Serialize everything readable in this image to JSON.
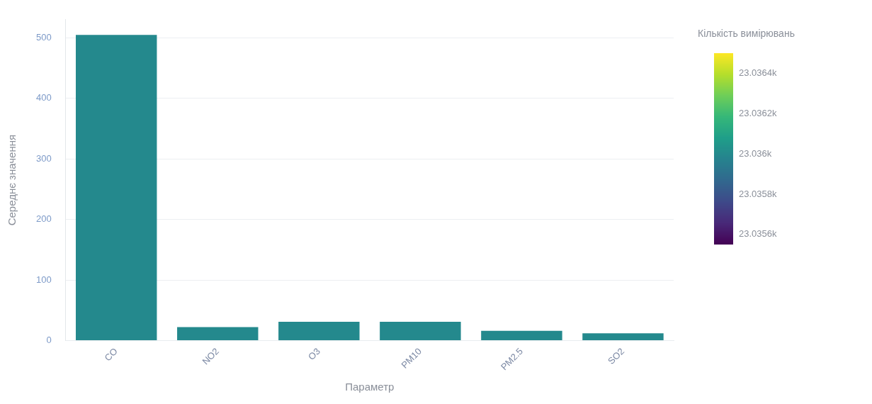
{
  "chart_data": {
    "type": "bar",
    "xlabel": "Параметр",
    "ylabel": "Середнє значення",
    "clabel": "Кількість вимірювань",
    "categories": [
      "CO",
      "NO2",
      "O3",
      "PM10",
      "PM2.5",
      "SO2"
    ],
    "values": [
      505,
      22,
      31,
      31,
      16,
      12
    ],
    "cvalues": [
      23036,
      23036,
      23036,
      23036,
      23036,
      23036
    ],
    "ylim": [
      0,
      530
    ],
    "yticks": [
      0,
      100,
      200,
      300,
      400,
      500
    ],
    "clim": [
      23035.55,
      23036.5
    ],
    "cticks": [
      {
        "value": 23035.6,
        "label": "23.0356k"
      },
      {
        "value": 23035.8,
        "label": "23.0358k"
      },
      {
        "value": 23036,
        "label": "23.036k"
      },
      {
        "value": 23036.2,
        "label": "23.0362k"
      },
      {
        "value": 23036.4,
        "label": "23.0364k"
      }
    ],
    "grid": "y",
    "legend": false
  }
}
